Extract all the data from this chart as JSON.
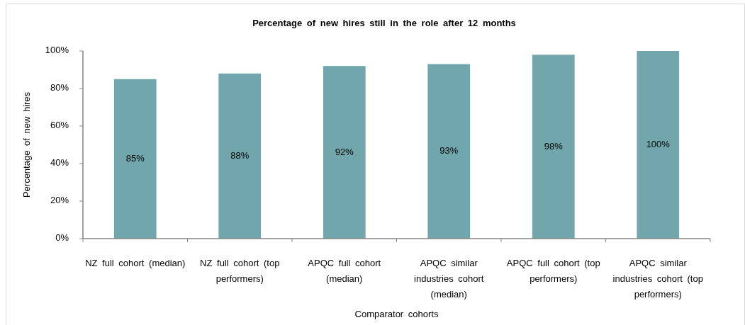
{
  "chart_data": {
    "type": "bar",
    "title": "Percentage of new hires still in the role after 12 months",
    "xlabel": "Comparator cohorts",
    "ylabel": "Percentage of new hires",
    "categories": [
      "NZ full cohort (median)",
      "NZ full cohort (top performers)",
      "APQC full cohort (median)",
      "APQC similar industries cohort (median)",
      "APQC full cohort (top performers)",
      "APQC similar industries cohort (top performers)"
    ],
    "values": [
      85,
      88,
      92,
      93,
      98,
      100
    ],
    "color": "#70a6ac",
    "ylim": [
      0,
      100
    ],
    "yticks": [
      {
        "value": 0,
        "label": "0%"
      },
      {
        "value": 20,
        "label": "20%"
      },
      {
        "value": 40,
        "label": "40%"
      },
      {
        "value": 60,
        "label": "60%"
      },
      {
        "value": 80,
        "label": "80%"
      },
      {
        "value": 100,
        "label": "100%"
      }
    ],
    "value_labels": [
      "85%",
      "88%",
      "92%",
      "93%",
      "98%",
      "100%"
    ],
    "grid": false
  }
}
